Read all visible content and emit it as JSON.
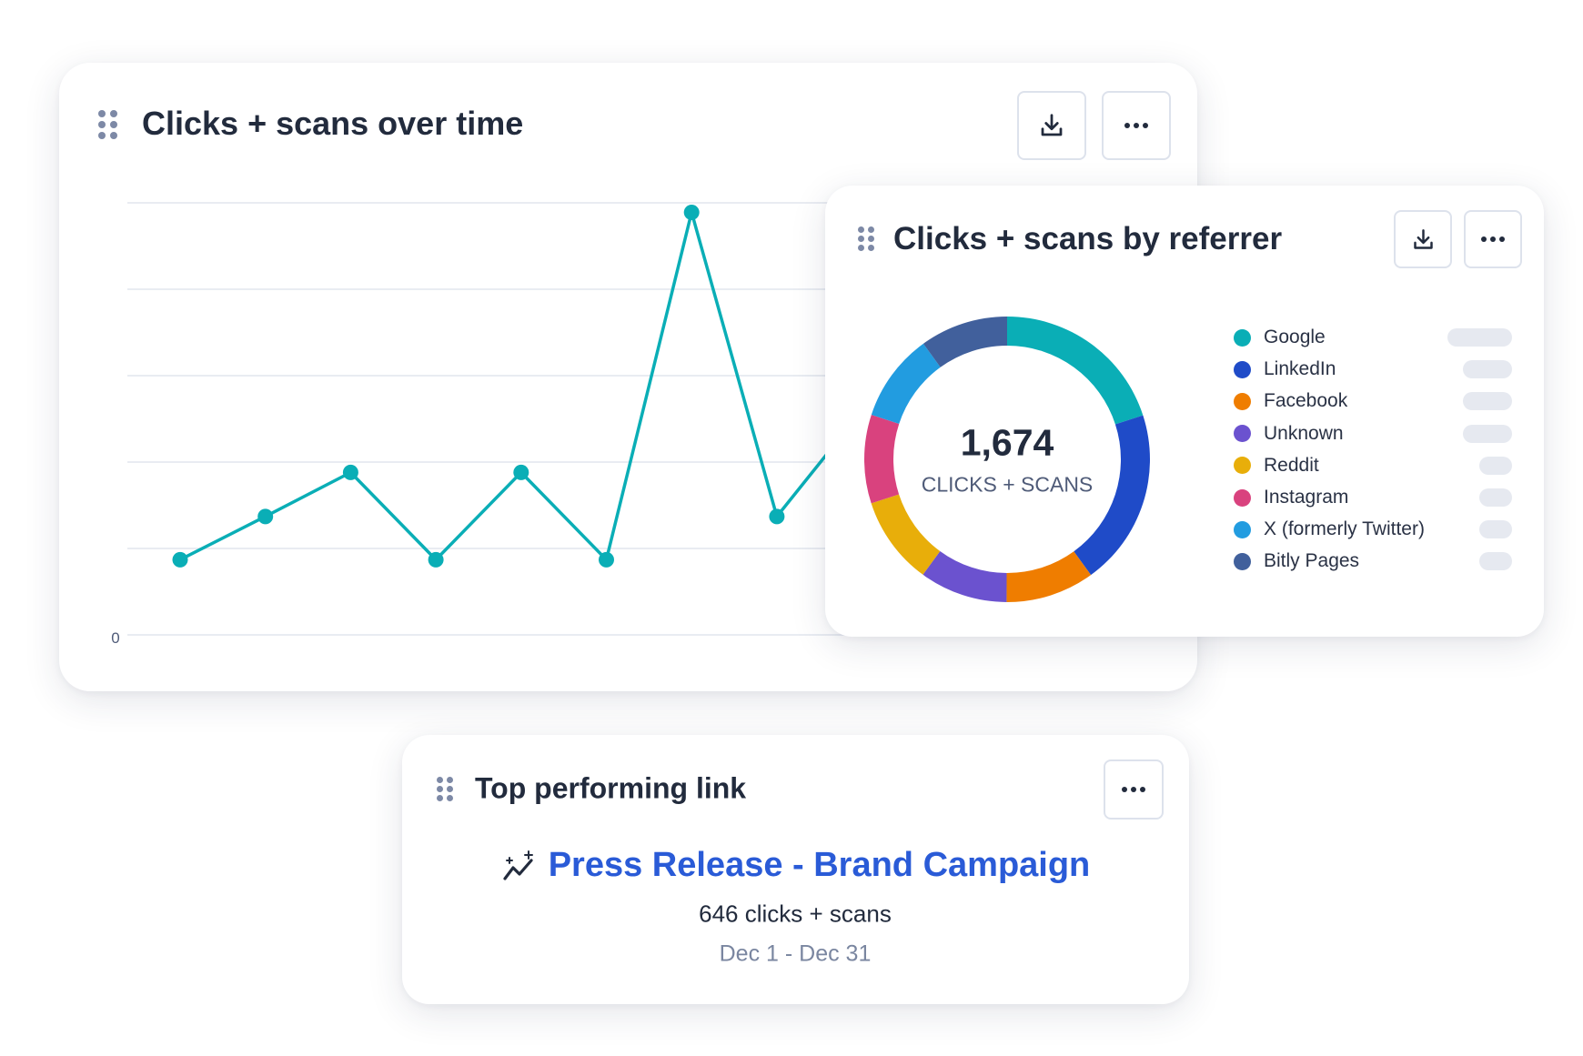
{
  "time_card": {
    "title": "Clicks + scans over time",
    "download_icon": "download-icon",
    "more_icon": "more-horizontal-icon",
    "drag_icon": "drag-handle-icon"
  },
  "referrer_card": {
    "title": "Clicks + scans by referrer",
    "total": "1,674",
    "total_label": "CLICKS + SCANS",
    "download_icon": "download-icon",
    "more_icon": "more-horizontal-icon"
  },
  "top_link_card": {
    "title": "Top performing link",
    "link_icon": "sparkle-trend-icon",
    "link_title": "Press Release - Brand Campaign",
    "count": "646 clicks + scans",
    "date_range": "Dec 1 - Dec 31",
    "link_color": "#2a5bd7"
  },
  "chart_data": [
    {
      "type": "line",
      "title": "Clicks + scans over time",
      "y_tick_labels": [
        "0"
      ],
      "grid": true,
      "color": "#0aaeb6",
      "y": [
        0.87,
        1.37,
        1.88,
        0.87,
        1.88,
        0.87,
        4.89,
        1.37,
        2.6
      ]
    },
    {
      "type": "pie",
      "variant": "donut",
      "title": "Clicks + scans by referrer",
      "total": 1674,
      "legend": "right",
      "slices": [
        {
          "name": "Google",
          "value": 335,
          "color": "#0aaeb6"
        },
        {
          "name": "LinkedIn",
          "value": 335,
          "color": "#1f4bc8"
        },
        {
          "name": "Facebook",
          "value": 168,
          "color": "#ef7d00"
        },
        {
          "name": "Unknown",
          "value": 167,
          "color": "#6b52cf"
        },
        {
          "name": "Reddit",
          "value": 167,
          "color": "#e8ae0a"
        },
        {
          "name": "Instagram",
          "value": 168,
          "color": "#d9427e"
        },
        {
          "name": "X (formerly Twitter)",
          "value": 167,
          "color": "#229ce0"
        },
        {
          "name": "Bitly Pages",
          "value": 167,
          "color": "#41609c"
        }
      ]
    }
  ]
}
